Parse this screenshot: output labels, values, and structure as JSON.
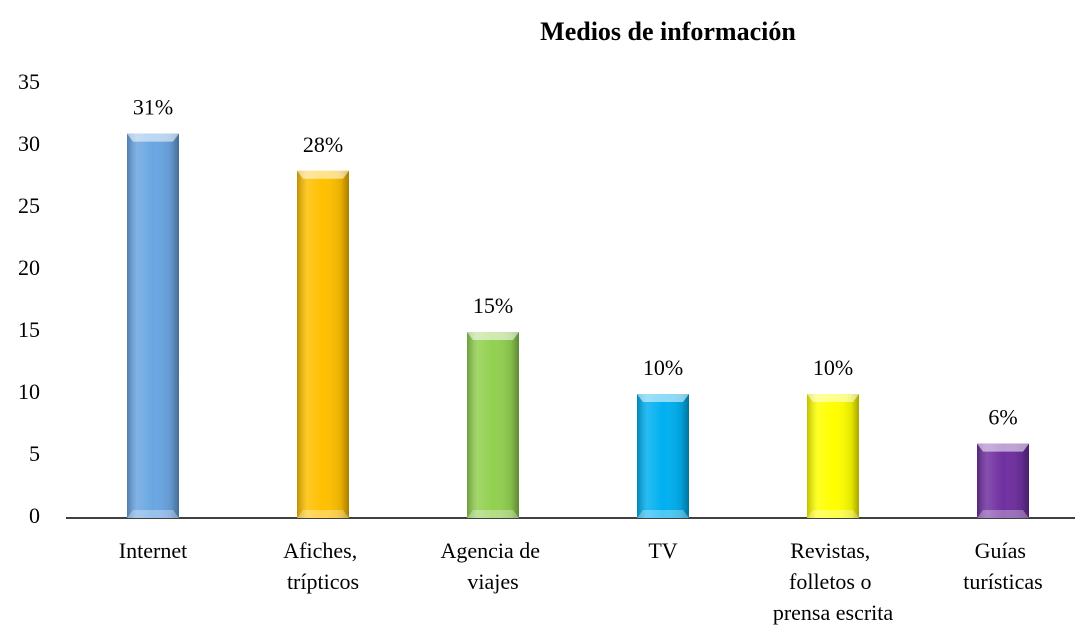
{
  "chart_data": {
    "type": "bar",
    "title": "Medios de información",
    "categories": [
      "Internet",
      "Afiches, trípticos",
      "Agencia de viajes",
      "TV",
      "Revistas, folletos o prensa escrita",
      "Guías turísticas"
    ],
    "values": [
      31,
      28,
      15,
      10,
      10,
      6
    ],
    "value_labels": [
      "31%",
      "28%",
      "15%",
      "10%",
      "10%",
      "6%"
    ],
    "colors": [
      "#6aa6e2",
      "#ffc000",
      "#92d050",
      "#00b0f0",
      "#ffff00",
      "#7030a0"
    ],
    "ylim": [
      0,
      35
    ],
    "yticks": [
      0,
      5,
      10,
      15,
      20,
      25,
      30,
      35
    ],
    "grid": false
  }
}
